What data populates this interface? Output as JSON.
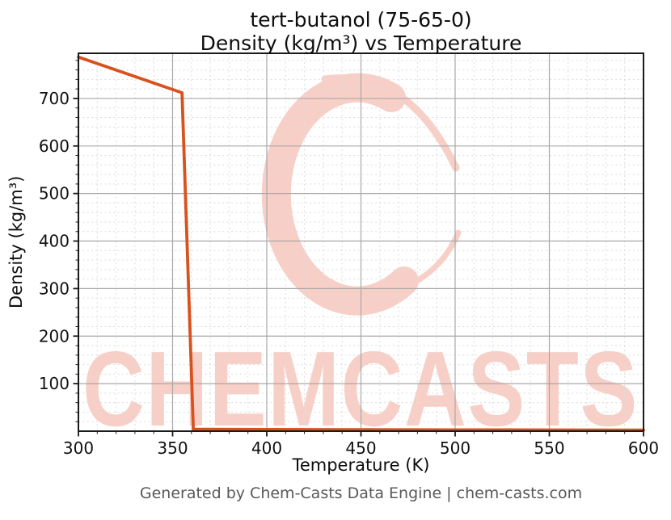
{
  "footer": {
    "text": "Generated by Chem-Casts Data Engine | chem-casts.com"
  },
  "watermark": {
    "text": "CHEMCASTS",
    "logo_icon": "chemcasts-c-brush-ring",
    "color": "#f8cfc6"
  },
  "colors": {
    "line": "#d8521e",
    "spine": "#1a1a1a",
    "grid_major": "#a8a8a8",
    "grid_minor": "#dcdcdc",
    "tick_label": "#111111",
    "footer_text": "#595959"
  },
  "chart_data": {
    "type": "line",
    "title": "tert-butanol (75-65-0)",
    "subtitle": "Density (kg/m³) vs Temperature",
    "xlabel": "Temperature (K)",
    "ylabel": "Density (kg/m³)",
    "xlim": [
      300,
      600
    ],
    "ylim": [
      0,
      795
    ],
    "x_ticks": [
      300,
      350,
      400,
      450,
      500,
      550,
      600
    ],
    "y_ticks": [
      100,
      200,
      300,
      400,
      500,
      600,
      700
    ],
    "x_minor_step": 10,
    "y_minor_step": 20,
    "grid": {
      "major": "solid",
      "minor": "dashed"
    },
    "legend_position": "none",
    "series": [
      {
        "name": "Density (kg/m³)",
        "color": "#d8521e",
        "x": [
          300,
          355,
          361,
          400,
          450,
          500,
          550,
          600
        ],
        "y": [
          787,
          712,
          4,
          3.5,
          3.1,
          2.8,
          2.5,
          2.3
        ]
      }
    ]
  }
}
